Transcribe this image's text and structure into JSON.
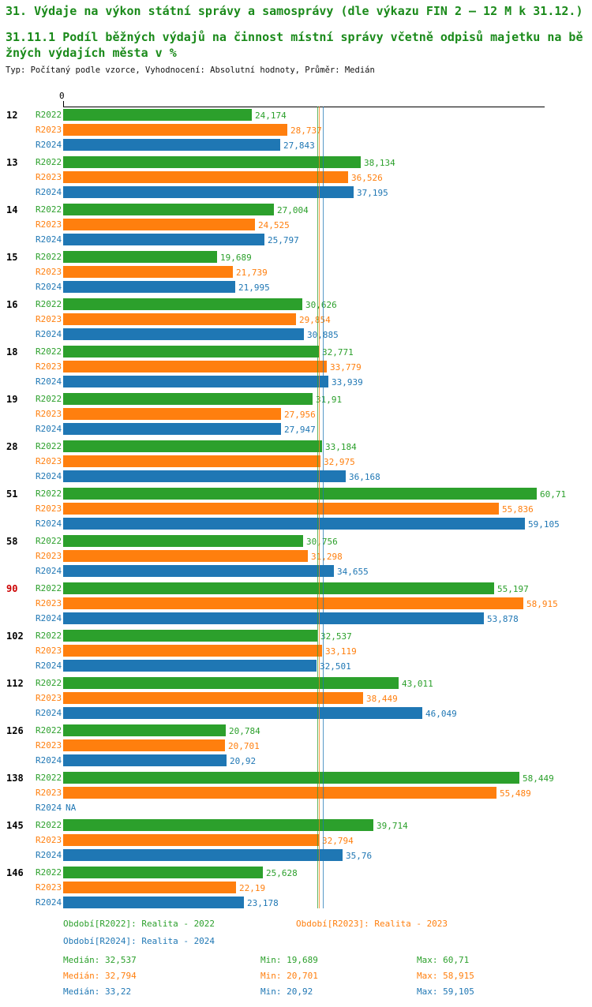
{
  "title": "31. Výdaje na výkon státní správy a samosprávy (dle výkazu FIN 2 – 12 M k 31.12.)",
  "subtitle_lines": [
    "31.11.1 Podíl běžných výdajů na činnost místní správy včetně odpisů majetku na bě",
    "žných výdajích města v %"
  ],
  "meta": "Typ: Počítaný podle vzorce, Vyhodnocení: Absolutní hodnoty, Průměr: Medián",
  "chart_data": {
    "type": "bar",
    "orientation": "horizontal",
    "title": "31.11.1 Podíl běžných výdajů na činnost místní správy včetně odpisů majetku na běžných výdajích města v %",
    "xlabel": "",
    "ylabel": "",
    "xlim": [
      0,
      61.7
    ],
    "axis_tick": "0",
    "grid": false,
    "legend_position": "bottom",
    "series_labels": [
      "R2022",
      "R2023",
      "R2024"
    ],
    "colors": [
      "#2ca02c",
      "#ff7f0e",
      "#1f77b4"
    ],
    "highlight_color": "#cc0000",
    "median_lines": [
      32.537,
      32.794,
      33.22
    ],
    "groups": [
      {
        "id": "12",
        "highlight": false,
        "values": [
          {
            "display": "24,174",
            "value": 24.174
          },
          {
            "display": "28,737",
            "value": 28.737
          },
          {
            "display": "27,843",
            "value": 27.843
          }
        ]
      },
      {
        "id": "13",
        "highlight": false,
        "values": [
          {
            "display": "38,134",
            "value": 38.134
          },
          {
            "display": "36,526",
            "value": 36.526
          },
          {
            "display": "37,195",
            "value": 37.195
          }
        ]
      },
      {
        "id": "14",
        "highlight": false,
        "values": [
          {
            "display": "27,004",
            "value": 27.004
          },
          {
            "display": "24,525",
            "value": 24.525
          },
          {
            "display": "25,797",
            "value": 25.797
          }
        ]
      },
      {
        "id": "15",
        "highlight": false,
        "values": [
          {
            "display": "19,689",
            "value": 19.689
          },
          {
            "display": "21,739",
            "value": 21.739
          },
          {
            "display": "21,995",
            "value": 21.995
          }
        ]
      },
      {
        "id": "16",
        "highlight": false,
        "values": [
          {
            "display": "30,626",
            "value": 30.626
          },
          {
            "display": "29,854",
            "value": 29.854
          },
          {
            "display": "30,885",
            "value": 30.885
          }
        ]
      },
      {
        "id": "18",
        "highlight": false,
        "values": [
          {
            "display": "32,771",
            "value": 32.771
          },
          {
            "display": "33,779",
            "value": 33.779
          },
          {
            "display": "33,939",
            "value": 33.939
          }
        ]
      },
      {
        "id": "19",
        "highlight": false,
        "values": [
          {
            "display": "31,91",
            "value": 31.91
          },
          {
            "display": "27,956",
            "value": 27.956
          },
          {
            "display": "27,947",
            "value": 27.947
          }
        ]
      },
      {
        "id": "28",
        "highlight": false,
        "values": [
          {
            "display": "33,184",
            "value": 33.184
          },
          {
            "display": "32,975",
            "value": 32.975
          },
          {
            "display": "36,168",
            "value": 36.168
          }
        ]
      },
      {
        "id": "51",
        "highlight": false,
        "values": [
          {
            "display": "60,71",
            "value": 60.71
          },
          {
            "display": "55,836",
            "value": 55.836
          },
          {
            "display": "59,105",
            "value": 59.105
          }
        ]
      },
      {
        "id": "58",
        "highlight": false,
        "values": [
          {
            "display": "30,756",
            "value": 30.756
          },
          {
            "display": "31,298",
            "value": 31.298
          },
          {
            "display": "34,655",
            "value": 34.655
          }
        ]
      },
      {
        "id": "90",
        "highlight": true,
        "values": [
          {
            "display": "55,197",
            "value": 55.197
          },
          {
            "display": "58,915",
            "value": 58.915
          },
          {
            "display": "53,878",
            "value": 53.878
          }
        ]
      },
      {
        "id": "102",
        "highlight": false,
        "values": [
          {
            "display": "32,537",
            "value": 32.537
          },
          {
            "display": "33,119",
            "value": 33.119
          },
          {
            "display": "32,501",
            "value": 32.501
          }
        ]
      },
      {
        "id": "112",
        "highlight": false,
        "values": [
          {
            "display": "43,011",
            "value": 43.011
          },
          {
            "display": "38,449",
            "value": 38.449
          },
          {
            "display": "46,049",
            "value": 46.049
          }
        ]
      },
      {
        "id": "126",
        "highlight": false,
        "values": [
          {
            "display": "20,784",
            "value": 20.784
          },
          {
            "display": "20,701",
            "value": 20.701
          },
          {
            "display": "20,92",
            "value": 20.92
          }
        ]
      },
      {
        "id": "138",
        "highlight": false,
        "values": [
          {
            "display": "58,449",
            "value": 58.449
          },
          {
            "display": "55,489",
            "value": 55.489
          },
          {
            "display": "NA",
            "value": null
          }
        ]
      },
      {
        "id": "145",
        "highlight": false,
        "values": [
          {
            "display": "39,714",
            "value": 39.714
          },
          {
            "display": "32,794",
            "value": 32.794
          },
          {
            "display": "35,76",
            "value": 35.76
          }
        ]
      },
      {
        "id": "146",
        "highlight": false,
        "values": [
          {
            "display": "25,628",
            "value": 25.628
          },
          {
            "display": "22,19",
            "value": 22.19
          },
          {
            "display": "23,178",
            "value": 23.178
          }
        ]
      }
    ]
  },
  "legend": [
    {
      "label": "Období[R2022]: Realita - 2022",
      "color": "#2ca02c"
    },
    {
      "label": "Období[R2023]: Realita - 2023",
      "color": "#ff7f0e"
    },
    {
      "label": "Období[R2024]: Realita - 2024",
      "color": "#1f77b4"
    }
  ],
  "stats": [
    {
      "color": "#2ca02c",
      "median": "Medián: 32,537",
      "min": "Min: 19,689",
      "max": "Max: 60,71"
    },
    {
      "color": "#ff7f0e",
      "median": "Medián: 32,794",
      "min": "Min: 20,701",
      "max": "Max: 58,915"
    },
    {
      "color": "#1f77b4",
      "median": "Medián: 33,22",
      "min": "Min: 20,92",
      "max": "Max: 59,105"
    }
  ]
}
